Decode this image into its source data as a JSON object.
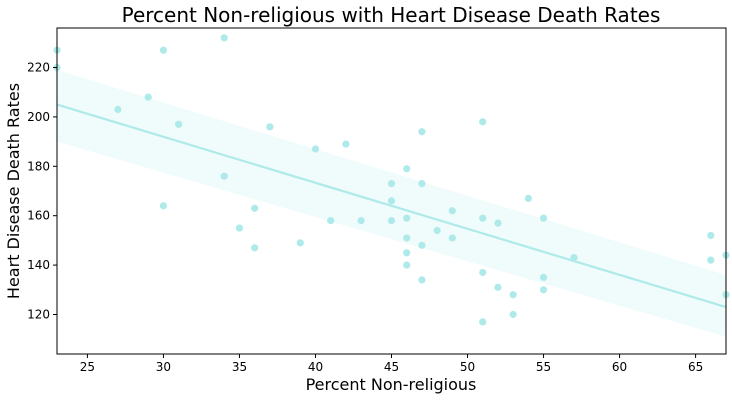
{
  "chart_data": {
    "type": "scatter",
    "title": "Percent Non-religious with Heart Disease Death Rates",
    "xlabel": "Percent Non-religious",
    "ylabel": "Heart Disease Death Rates",
    "xlim": [
      23,
      67
    ],
    "ylim": [
      104,
      236
    ],
    "xticks": [
      25,
      30,
      35,
      40,
      45,
      50,
      55,
      60,
      65
    ],
    "yticks": [
      120,
      140,
      160,
      180,
      200,
      220
    ],
    "grid": false,
    "point_color": "#aeeaea",
    "line_color": "#aeeaea",
    "band_color": "#f0fbfb",
    "regression_line": {
      "x": [
        23,
        67
      ],
      "y": [
        205,
        123
      ]
    },
    "confidence_band": {
      "x": [
        23,
        67
      ],
      "upper": [
        219,
        136
      ],
      "lower": [
        190,
        111
      ]
    },
    "points": [
      {
        "x": 23,
        "y": 227
      },
      {
        "x": 23,
        "y": 220
      },
      {
        "x": 27,
        "y": 203
      },
      {
        "x": 29,
        "y": 208
      },
      {
        "x": 30,
        "y": 227
      },
      {
        "x": 30,
        "y": 164
      },
      {
        "x": 31,
        "y": 197
      },
      {
        "x": 34,
        "y": 232
      },
      {
        "x": 34,
        "y": 176
      },
      {
        "x": 35,
        "y": 155
      },
      {
        "x": 36,
        "y": 163
      },
      {
        "x": 36,
        "y": 147
      },
      {
        "x": 37,
        "y": 196
      },
      {
        "x": 39,
        "y": 149
      },
      {
        "x": 40,
        "y": 187
      },
      {
        "x": 41,
        "y": 158
      },
      {
        "x": 42,
        "y": 189
      },
      {
        "x": 43,
        "y": 158
      },
      {
        "x": 45,
        "y": 173
      },
      {
        "x": 45,
        "y": 166
      },
      {
        "x": 45,
        "y": 158
      },
      {
        "x": 46,
        "y": 179
      },
      {
        "x": 46,
        "y": 159
      },
      {
        "x": 46,
        "y": 151
      },
      {
        "x": 46,
        "y": 145
      },
      {
        "x": 46,
        "y": 140
      },
      {
        "x": 47,
        "y": 194
      },
      {
        "x": 47,
        "y": 173
      },
      {
        "x": 47,
        "y": 148
      },
      {
        "x": 47,
        "y": 134
      },
      {
        "x": 48,
        "y": 154
      },
      {
        "x": 49,
        "y": 162
      },
      {
        "x": 49,
        "y": 151
      },
      {
        "x": 51,
        "y": 198
      },
      {
        "x": 51,
        "y": 159
      },
      {
        "x": 51,
        "y": 137
      },
      {
        "x": 51,
        "y": 117
      },
      {
        "x": 52,
        "y": 157
      },
      {
        "x": 52,
        "y": 131
      },
      {
        "x": 53,
        "y": 128
      },
      {
        "x": 53,
        "y": 120
      },
      {
        "x": 54,
        "y": 167
      },
      {
        "x": 55,
        "y": 159
      },
      {
        "x": 55,
        "y": 135
      },
      {
        "x": 55,
        "y": 130
      },
      {
        "x": 57,
        "y": 143
      },
      {
        "x": 66,
        "y": 152
      },
      {
        "x": 66,
        "y": 142
      },
      {
        "x": 67,
        "y": 144
      },
      {
        "x": 67,
        "y": 128
      }
    ]
  }
}
